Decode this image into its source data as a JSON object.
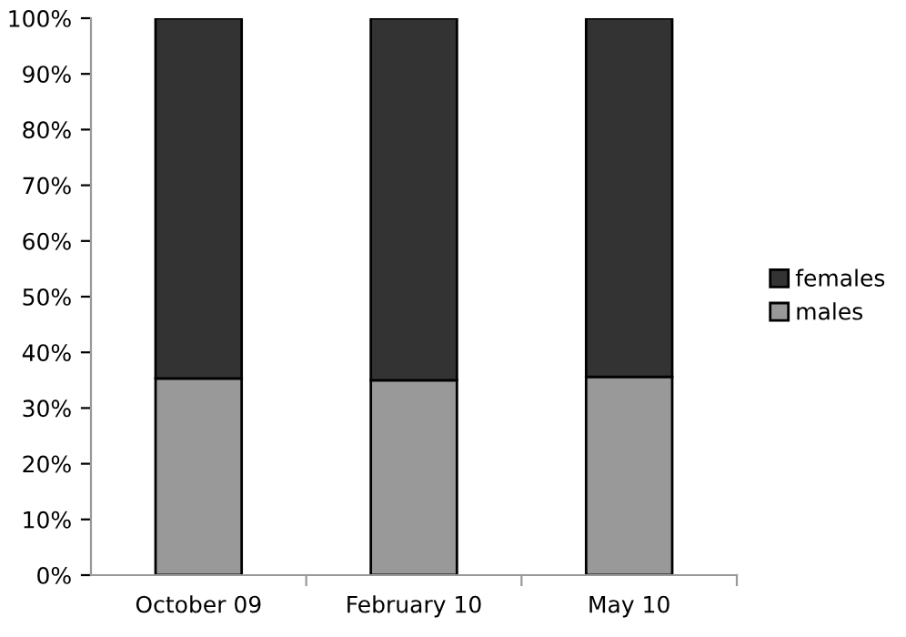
{
  "chart_data": {
    "type": "bar",
    "stacked": true,
    "categories": [
      "October 09",
      "February 10",
      "May 10"
    ],
    "series": [
      {
        "name": "males",
        "color": "#999999",
        "values": [
          35.3,
          35.0,
          35.6
        ]
      },
      {
        "name": "females",
        "color": "#333333",
        "values": [
          64.7,
          65.0,
          64.4
        ]
      }
    ],
    "ylim": [
      0,
      100
    ],
    "yticks": [
      {
        "value": 0,
        "label": "0%"
      },
      {
        "value": 10,
        "label": "10%"
      },
      {
        "value": 20,
        "label": "20%"
      },
      {
        "value": 30,
        "label": "30%"
      },
      {
        "value": 40,
        "label": "40%"
      },
      {
        "value": 50,
        "label": "50%"
      },
      {
        "value": 60,
        "label": "60%"
      },
      {
        "value": 70,
        "label": "70%"
      },
      {
        "value": 80,
        "label": "80%"
      },
      {
        "value": 90,
        "label": "90%"
      },
      {
        "value": 100,
        "label": "100%"
      }
    ],
    "grid": false,
    "legend": "right"
  }
}
